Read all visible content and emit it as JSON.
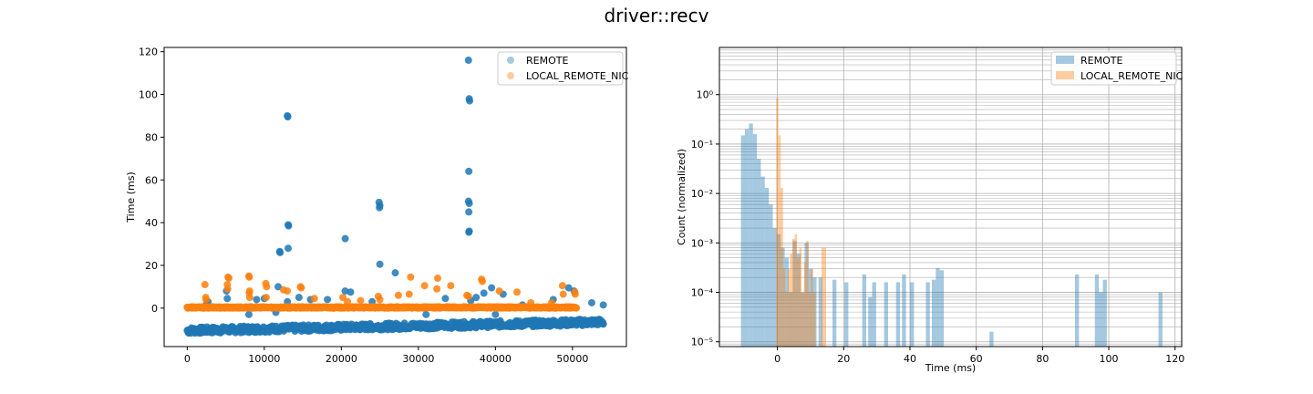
{
  "figure_title": "driver::recv",
  "chart_data": [
    {
      "type": "scatter",
      "title": "",
      "xlabel": "",
      "ylabel": "Time (ms)",
      "xlim": [
        -3000,
        57000
      ],
      "ylim": [
        -18,
        122
      ],
      "x_ticks": [
        0,
        10000,
        20000,
        30000,
        40000,
        50000
      ],
      "y_ticks": [
        0,
        20,
        40,
        60,
        80,
        100,
        120
      ],
      "x_tick_labels": [
        "0",
        "10000",
        "20000",
        "30000",
        "40000",
        "50000"
      ],
      "y_tick_labels": [
        "0",
        "20",
        "40",
        "60",
        "80",
        "100",
        "120"
      ],
      "legend_position": "top-right",
      "series": [
        {
          "name": "REMOTE",
          "color": "#1f77b4",
          "band": {
            "x_start": 0,
            "x_end": 54000,
            "y_low_start": -12,
            "y_low_end": -8,
            "y_high_start": -9,
            "y_high_end": -5
          },
          "points": [
            [
              13000,
              90
            ],
            [
              13050,
              89.5
            ],
            [
              36500,
              116
            ],
            [
              36600,
              98
            ],
            [
              36650,
              97
            ],
            [
              36550,
              64
            ],
            [
              36500,
              50
            ],
            [
              36600,
              49
            ],
            [
              36550,
              45
            ],
            [
              36600,
              36
            ],
            [
              36550,
              35.5
            ],
            [
              13100,
              39
            ],
            [
              13150,
              38.5
            ],
            [
              13100,
              28
            ],
            [
              12000,
              26.5
            ],
            [
              12050,
              26
            ],
            [
              20500,
              32.5
            ],
            [
              24900,
              49.5
            ],
            [
              25000,
              48
            ],
            [
              24950,
              47
            ],
            [
              25000,
              20.5
            ],
            [
              27000,
              16.5
            ],
            [
              2500,
              2
            ],
            [
              2700,
              3
            ],
            [
              5100,
              8
            ],
            [
              5200,
              4.5
            ],
            [
              9000,
              4
            ],
            [
              10000,
              4.5
            ],
            [
              11800,
              10
            ],
            [
              13000,
              3
            ],
            [
              14500,
              5
            ],
            [
              16000,
              4
            ],
            [
              18200,
              4
            ],
            [
              20500,
              8
            ],
            [
              21200,
              7.5
            ],
            [
              24000,
              3
            ],
            [
              31000,
              -3
            ],
            [
              33500,
              4.5
            ],
            [
              36800,
              3.5
            ],
            [
              37500,
              5
            ],
            [
              38500,
              7
            ],
            [
              39500,
              9.5
            ],
            [
              41000,
              6.5
            ],
            [
              43500,
              1.5
            ],
            [
              47500,
              4
            ],
            [
              49500,
              9.5
            ],
            [
              50200,
              8
            ],
            [
              52500,
              2.5
            ],
            [
              54000,
              1.5
            ],
            [
              40000,
              -3
            ],
            [
              11500,
              -2
            ],
            [
              8000,
              -3
            ]
          ]
        },
        {
          "name": "LOCAL_REMOTE_NIC",
          "color": "#ff7f0e",
          "band": {
            "x_start": 0,
            "x_end": 50500,
            "y": 0.3
          },
          "points": [
            [
              2300,
              11
            ],
            [
              2400,
              5
            ],
            [
              2450,
              4
            ],
            [
              5300,
              14.5
            ],
            [
              5400,
              14
            ],
            [
              5200,
              11
            ],
            [
              5250,
              9
            ],
            [
              8000,
              15
            ],
            [
              8050,
              14.5
            ],
            [
              8100,
              8
            ],
            [
              8050,
              7
            ],
            [
              8100,
              5
            ],
            [
              10200,
              11.5
            ],
            [
              10300,
              10
            ],
            [
              10250,
              5
            ],
            [
              12500,
              8.5
            ],
            [
              13000,
              8
            ],
            [
              14700,
              10
            ],
            [
              14800,
              9.5
            ],
            [
              16500,
              4.5
            ],
            [
              20200,
              5
            ],
            [
              22500,
              3.5
            ],
            [
              24800,
              5.5
            ],
            [
              25000,
              4
            ],
            [
              27400,
              6
            ],
            [
              28800,
              6.5
            ],
            [
              29000,
              14.5
            ],
            [
              30800,
              10.5
            ],
            [
              32500,
              14
            ],
            [
              32400,
              9
            ],
            [
              34200,
              10.5
            ],
            [
              36300,
              6
            ],
            [
              36500,
              5.5
            ],
            [
              38200,
              13.5
            ],
            [
              38300,
              12.5
            ],
            [
              40500,
              8
            ],
            [
              42800,
              7.5
            ],
            [
              44600,
              2.5
            ],
            [
              47300,
              2.5
            ],
            [
              48700,
              10.5
            ],
            [
              48800,
              6.5
            ],
            [
              50300,
              7.5
            ],
            [
              50350,
              6.5
            ],
            [
              20800,
              3
            ]
          ]
        }
      ]
    },
    {
      "type": "bar",
      "subtype": "histogram",
      "title": "",
      "xlabel": "Time (ms)",
      "ylabel": "Count (normalized)",
      "y_scale": "log",
      "xlim": [
        -17.5,
        122
      ],
      "ylim": [
        8e-06,
        9
      ],
      "grid": true,
      "x_ticks": [
        0,
        20,
        40,
        60,
        80,
        100,
        120
      ],
      "x_tick_labels": [
        "0",
        "20",
        "40",
        "60",
        "80",
        "100",
        "120"
      ],
      "y_ticks": [
        1e-05,
        0.0001,
        0.001,
        0.01,
        0.1,
        1
      ],
      "y_tick_labels": [
        "10⁻⁵",
        "10⁻⁴",
        "10⁻³",
        "10⁻²",
        "10⁻¹",
        "10⁰"
      ],
      "legend_position": "top-right",
      "bin_width": 1.2,
      "series": [
        {
          "name": "REMOTE",
          "color": "#1f77b4",
          "opacity": 0.4,
          "bins": [
            [
              -11,
              0.15
            ],
            [
              -9.8,
              0.2
            ],
            [
              -8.6,
              0.26
            ],
            [
              -7.4,
              0.16
            ],
            [
              -6.2,
              0.05
            ],
            [
              -5,
              0.022
            ],
            [
              -3.8,
              0.013
            ],
            [
              -2.6,
              0.006
            ],
            [
              -1.4,
              0.002
            ],
            [
              -0.2,
              0.0015
            ],
            [
              1,
              0.0008
            ],
            [
              2.2,
              0.0005
            ],
            [
              3.4,
              0.0001
            ],
            [
              4.6,
              0.0011
            ],
            [
              5.8,
              0.0006
            ],
            [
              7,
              0.0001
            ],
            [
              8.2,
              0.001
            ],
            [
              9.4,
              0.0003
            ],
            [
              10.6,
              0.0002
            ],
            [
              12.4,
              0.0002
            ],
            [
              16.6,
              0.00018
            ],
            [
              20.2,
              0.00016
            ],
            [
              25.6,
              0.00023
            ],
            [
              27.4,
              8e-05
            ],
            [
              28.6,
              0.00016
            ],
            [
              32.2,
              0.00016
            ],
            [
              35.8,
              0.00016
            ],
            [
              37.6,
              0.00023
            ],
            [
              40,
              0.00016
            ],
            [
              44.8,
              0.00016
            ],
            [
              46.6,
              0.00018
            ],
            [
              47.8,
              0.00031
            ],
            [
              49,
              0.00028
            ],
            [
              64,
              1.6e-05
            ],
            [
              89.8,
              0.00023
            ],
            [
              95.8,
              0.00023
            ],
            [
              97,
              0.0001
            ],
            [
              98.2,
              0.00018
            ],
            [
              115,
              0.0001
            ]
          ]
        },
        {
          "name": "LOCAL_REMOTE_NIC",
          "color": "#ff7f0e",
          "opacity": 0.4,
          "bins": [
            [
              -0.4,
              0.85
            ],
            [
              0.3,
              0.15
            ],
            [
              1,
              0.013
            ],
            [
              1.7,
              0.0003
            ],
            [
              2.4,
              0.0001
            ],
            [
              3.1,
              0.0003
            ],
            [
              3.8,
              0.0006
            ],
            [
              4.5,
              0.0012
            ],
            [
              5.2,
              0.0015
            ],
            [
              5.9,
              0.0005
            ],
            [
              6.6,
              0.0008
            ],
            [
              7.3,
              0.0001
            ],
            [
              8,
              0.0004
            ],
            [
              8.7,
              0.0011
            ],
            [
              9.4,
              0.0001
            ],
            [
              10.1,
              0.0003
            ],
            [
              10.8,
              0.0001
            ],
            [
              13.3,
              0.0008
            ],
            [
              14,
              0.0008
            ]
          ]
        }
      ]
    }
  ]
}
